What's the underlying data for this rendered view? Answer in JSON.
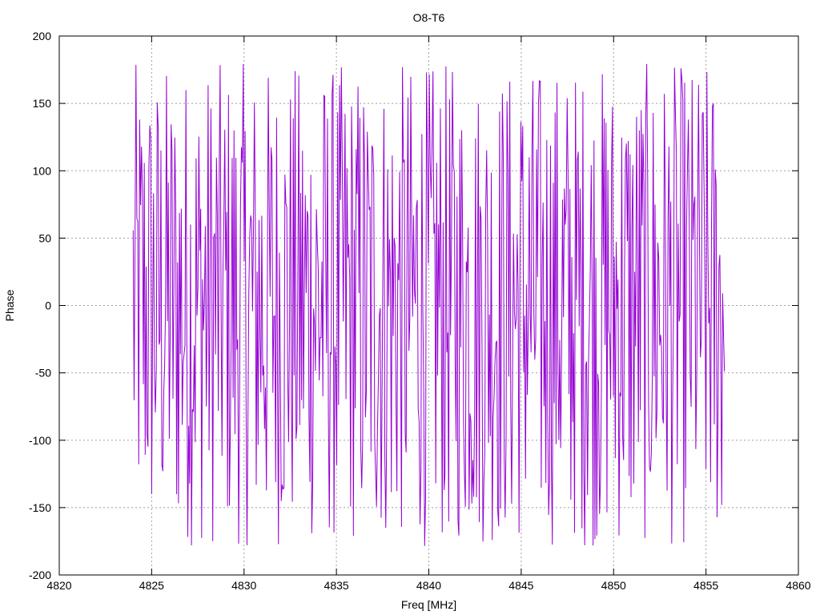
{
  "chart_data": {
    "type": "line",
    "title": "O8-T6",
    "xlabel": "Freq [MHz]",
    "ylabel": "Phase",
    "xlim": [
      4820,
      4860
    ],
    "ylim": [
      -200,
      200
    ],
    "xticks": [
      4820,
      4825,
      4830,
      4835,
      4840,
      4845,
      4850,
      4855,
      4860
    ],
    "yticks": [
      -200,
      -150,
      -100,
      -50,
      0,
      50,
      100,
      150,
      200
    ],
    "grid": true,
    "legend": "none",
    "series": [
      {
        "color": "#9400d3",
        "x_start": 4824.0,
        "x_end": 4856.0,
        "points": 640,
        "y_range": [
          -180,
          180
        ],
        "note_values": "phase wrapped to [-180, 180], rapidly oscillating"
      }
    ]
  }
}
